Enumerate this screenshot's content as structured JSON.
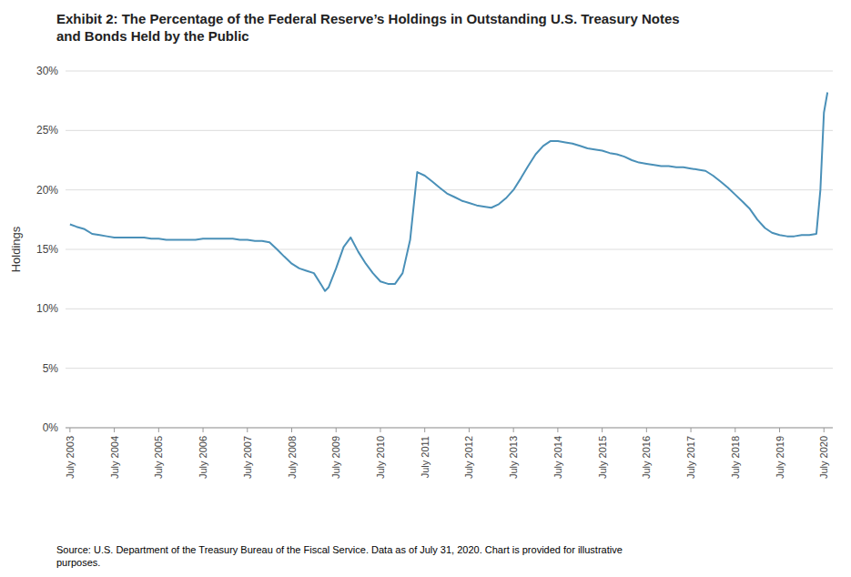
{
  "chart_data": {
    "type": "line",
    "title": "Exhibit 2: The Percentage of the Federal Reserve’s Holdings in Outstanding U.S. Treasury Notes\nand Bonds Held by the Public",
    "y_label": "Holdings",
    "source": "Source: U.S. Department of the Treasury Bureau of the Fiscal Service. Data as of July 31, 2020. Chart is provided for illustrative\npurposes.",
    "color": "#4a90b8",
    "grid": true,
    "xlim": [
      2003.4,
      2020.7
    ],
    "xticks": [
      {
        "value": 2003.5,
        "label": "July 2003"
      },
      {
        "value": 2004.5,
        "label": "July 2004"
      },
      {
        "value": 2005.5,
        "label": "July 2005"
      },
      {
        "value": 2006.5,
        "label": "July 2006"
      },
      {
        "value": 2007.5,
        "label": "July 2007"
      },
      {
        "value": 2008.5,
        "label": "July 2008"
      },
      {
        "value": 2009.5,
        "label": "July 2009"
      },
      {
        "value": 2010.5,
        "label": "July 2010"
      },
      {
        "value": 2011.5,
        "label": "July 2011"
      },
      {
        "value": 2012.5,
        "label": "July 2012"
      },
      {
        "value": 2013.5,
        "label": "July 2013"
      },
      {
        "value": 2014.5,
        "label": "July 2014"
      },
      {
        "value": 2015.5,
        "label": "July 2015"
      },
      {
        "value": 2016.5,
        "label": "July 2016"
      },
      {
        "value": 2017.5,
        "label": "July 2017"
      },
      {
        "value": 2018.5,
        "label": "July 2018"
      },
      {
        "value": 2019.5,
        "label": "July 2019"
      },
      {
        "value": 2020.5,
        "label": "July 2020"
      }
    ],
    "ylim": [
      0,
      0.3
    ],
    "yticks": [
      {
        "value": 0.0,
        "label": "0%"
      },
      {
        "value": 0.05,
        "label": "5%"
      },
      {
        "value": 0.1,
        "label": "10%"
      },
      {
        "value": 0.15,
        "label": "15%"
      },
      {
        "value": 0.2,
        "label": "20%"
      },
      {
        "value": 0.25,
        "label": "25%"
      },
      {
        "value": 0.3,
        "label": "30%"
      }
    ],
    "x": [
      2003.5,
      2003.65,
      2003.83,
      2004.0,
      2004.17,
      2004.33,
      2004.5,
      2004.67,
      2004.83,
      2005.0,
      2005.17,
      2005.33,
      2005.5,
      2005.67,
      2005.83,
      2006.0,
      2006.17,
      2006.33,
      2006.5,
      2006.67,
      2006.83,
      2007.0,
      2007.17,
      2007.33,
      2007.5,
      2007.67,
      2007.83,
      2008.0,
      2008.17,
      2008.33,
      2008.5,
      2008.67,
      2008.83,
      2009.0,
      2009.17,
      2009.25,
      2009.33,
      2009.5,
      2009.67,
      2009.83,
      2010.0,
      2010.17,
      2010.33,
      2010.5,
      2010.67,
      2010.83,
      2011.0,
      2011.17,
      2011.33,
      2011.5,
      2011.67,
      2011.83,
      2012.0,
      2012.17,
      2012.33,
      2012.5,
      2012.67,
      2012.83,
      2013.0,
      2013.17,
      2013.33,
      2013.5,
      2013.67,
      2013.83,
      2014.0,
      2014.17,
      2014.33,
      2014.5,
      2014.67,
      2014.83,
      2015.0,
      2015.17,
      2015.33,
      2015.5,
      2015.67,
      2015.83,
      2016.0,
      2016.17,
      2016.33,
      2016.5,
      2016.67,
      2016.83,
      2017.0,
      2017.17,
      2017.33,
      2017.5,
      2017.67,
      2017.83,
      2018.0,
      2018.17,
      2018.33,
      2018.5,
      2018.67,
      2018.83,
      2019.0,
      2019.17,
      2019.33,
      2019.5,
      2019.67,
      2019.83,
      2020.0,
      2020.17,
      2020.33,
      2020.42,
      2020.5,
      2020.58
    ],
    "values": [
      0.171,
      0.169,
      0.167,
      0.163,
      0.162,
      0.161,
      0.16,
      0.16,
      0.16,
      0.16,
      0.16,
      0.159,
      0.159,
      0.158,
      0.158,
      0.158,
      0.158,
      0.158,
      0.159,
      0.159,
      0.159,
      0.159,
      0.159,
      0.158,
      0.158,
      0.157,
      0.157,
      0.156,
      0.15,
      0.144,
      0.138,
      0.134,
      0.132,
      0.13,
      0.12,
      0.115,
      0.118,
      0.134,
      0.152,
      0.16,
      0.148,
      0.138,
      0.13,
      0.123,
      0.121,
      0.121,
      0.13,
      0.158,
      0.215,
      0.212,
      0.207,
      0.202,
      0.197,
      0.194,
      0.191,
      0.189,
      0.187,
      0.186,
      0.185,
      0.188,
      0.193,
      0.2,
      0.21,
      0.22,
      0.23,
      0.237,
      0.241,
      0.241,
      0.24,
      0.239,
      0.237,
      0.235,
      0.234,
      0.233,
      0.231,
      0.23,
      0.228,
      0.225,
      0.223,
      0.222,
      0.221,
      0.22,
      0.22,
      0.219,
      0.219,
      0.218,
      0.217,
      0.216,
      0.212,
      0.207,
      0.202,
      0.196,
      0.19,
      0.184,
      0.175,
      0.168,
      0.164,
      0.162,
      0.161,
      0.161,
      0.162,
      0.162,
      0.163,
      0.2,
      0.265,
      0.282
    ]
  }
}
